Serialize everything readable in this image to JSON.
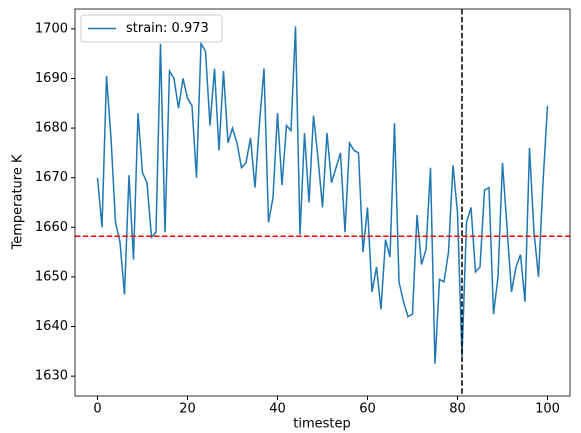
{
  "chart_data": {
    "type": "line",
    "xlabel": "timestep",
    "ylabel": "Temperature K",
    "x": [
      0,
      1,
      2,
      3,
      4,
      5,
      6,
      7,
      8,
      9,
      10,
      11,
      12,
      13,
      14,
      15,
      16,
      17,
      18,
      19,
      20,
      21,
      22,
      23,
      24,
      25,
      26,
      27,
      28,
      29,
      30,
      31,
      32,
      33,
      34,
      35,
      36,
      37,
      38,
      39,
      40,
      41,
      42,
      43,
      44,
      45,
      46,
      47,
      48,
      49,
      50,
      51,
      52,
      53,
      54,
      55,
      56,
      57,
      58,
      59,
      60,
      61,
      62,
      63,
      64,
      65,
      66,
      67,
      68,
      69,
      70,
      71,
      72,
      73,
      74,
      75,
      76,
      77,
      78,
      79,
      80,
      81,
      82,
      83,
      84,
      85,
      86,
      87,
      88,
      89,
      90,
      91,
      92,
      93,
      94,
      95,
      96,
      97,
      98,
      99,
      100
    ],
    "series": [
      {
        "name": "strain: 0.973",
        "color": "#1f77b4",
        "values": [
          1670,
          1660,
          1690.5,
          1678,
          1661,
          1657,
          1646.5,
          1670.5,
          1653.5,
          1683,
          1671,
          1669,
          1658,
          1659,
          1697,
          1659,
          1691.5,
          1690,
          1684,
          1690,
          1686,
          1684.5,
          1670,
          1697,
          1695.5,
          1680.5,
          1692,
          1675.5,
          1691.5,
          1677,
          1680,
          1677,
          1672,
          1673,
          1678,
          1668,
          1681,
          1692,
          1661,
          1666,
          1683,
          1668.5,
          1680.5,
          1679.5,
          1700.5,
          1658.5,
          1679,
          1665,
          1682.5,
          1674,
          1664,
          1679,
          1669,
          1672,
          1675,
          1659,
          1677,
          1675.5,
          1675,
          1655,
          1664,
          1647,
          1652,
          1643.5,
          1657.5,
          1654,
          1681,
          1649,
          1645,
          1642,
          1642.5,
          1662.5,
          1652.5,
          1655.5,
          1672,
          1632.5,
          1649.5,
          1649,
          1655,
          1672.5,
          1663,
          1634,
          1661,
          1664,
          1651,
          1652,
          1667.5,
          1668,
          1642.5,
          1650,
          1673,
          1660,
          1647,
          1652,
          1654.5,
          1645,
          1676,
          1659,
          1650,
          1669,
          1684.5
        ]
      }
    ],
    "hline": {
      "value": 1658.2,
      "color": "#ff0000"
    },
    "vline": {
      "value": 81,
      "color": "#000000"
    },
    "xlim": [
      -5,
      105
    ],
    "xticks": [
      0,
      20,
      40,
      60,
      80,
      100
    ],
    "ylim": [
      1626,
      1704
    ],
    "yticks": [
      1630,
      1640,
      1650,
      1660,
      1670,
      1680,
      1690,
      1700
    ],
    "legend": "upper left"
  }
}
